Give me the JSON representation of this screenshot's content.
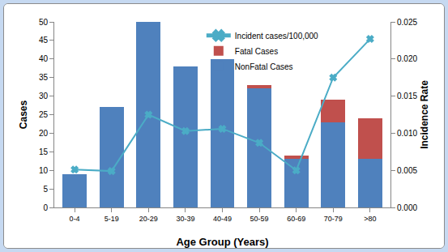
{
  "chart_data": {
    "type": "bar",
    "stacked": true,
    "grid": false,
    "legend": "top",
    "x_label": "Age Group (Years)",
    "y_label": "Cases",
    "y2_label": "Incidence Rate",
    "categories": [
      "0-4",
      "5-19",
      "20-29",
      "30-39",
      "40-49",
      "50-59",
      "60-69",
      "70-79",
      ">80"
    ],
    "series": [
      {
        "name": "NonFatal Cases",
        "type": "bar",
        "color": "#4f81bd",
        "values": [
          9,
          27,
          50,
          38,
          40,
          32,
          13,
          23,
          13
        ]
      },
      {
        "name": "Fatal Cases",
        "type": "bar",
        "color": "#c0504d",
        "values": [
          0,
          0,
          0,
          0,
          0,
          1,
          1,
          6,
          11
        ]
      },
      {
        "name": "Incident cases/100,000",
        "type": "line",
        "axis": "y2",
        "color": "#4bacc6",
        "marker": "x",
        "line_style": "solid",
        "values": [
          0.0051,
          0.0049,
          0.0125,
          0.0103,
          0.0106,
          0.0087,
          0.005,
          0.0175,
          0.0227
        ]
      }
    ],
    "ylim": [
      0,
      50
    ],
    "yticks": [
      0,
      5,
      10,
      15,
      20,
      25,
      30,
      35,
      40,
      45,
      50
    ],
    "y2lim": [
      0,
      0.025
    ],
    "y2ticks": [
      {
        "value": 0,
        "label": "0.000"
      },
      {
        "value": 0.005,
        "label": "0.005"
      },
      {
        "value": 0.01,
        "label": "0.010"
      },
      {
        "value": 0.015,
        "label": "0.015"
      },
      {
        "value": 0.02,
        "label": "0.020"
      },
      {
        "value": 0.025,
        "label": "0.025"
      }
    ]
  }
}
